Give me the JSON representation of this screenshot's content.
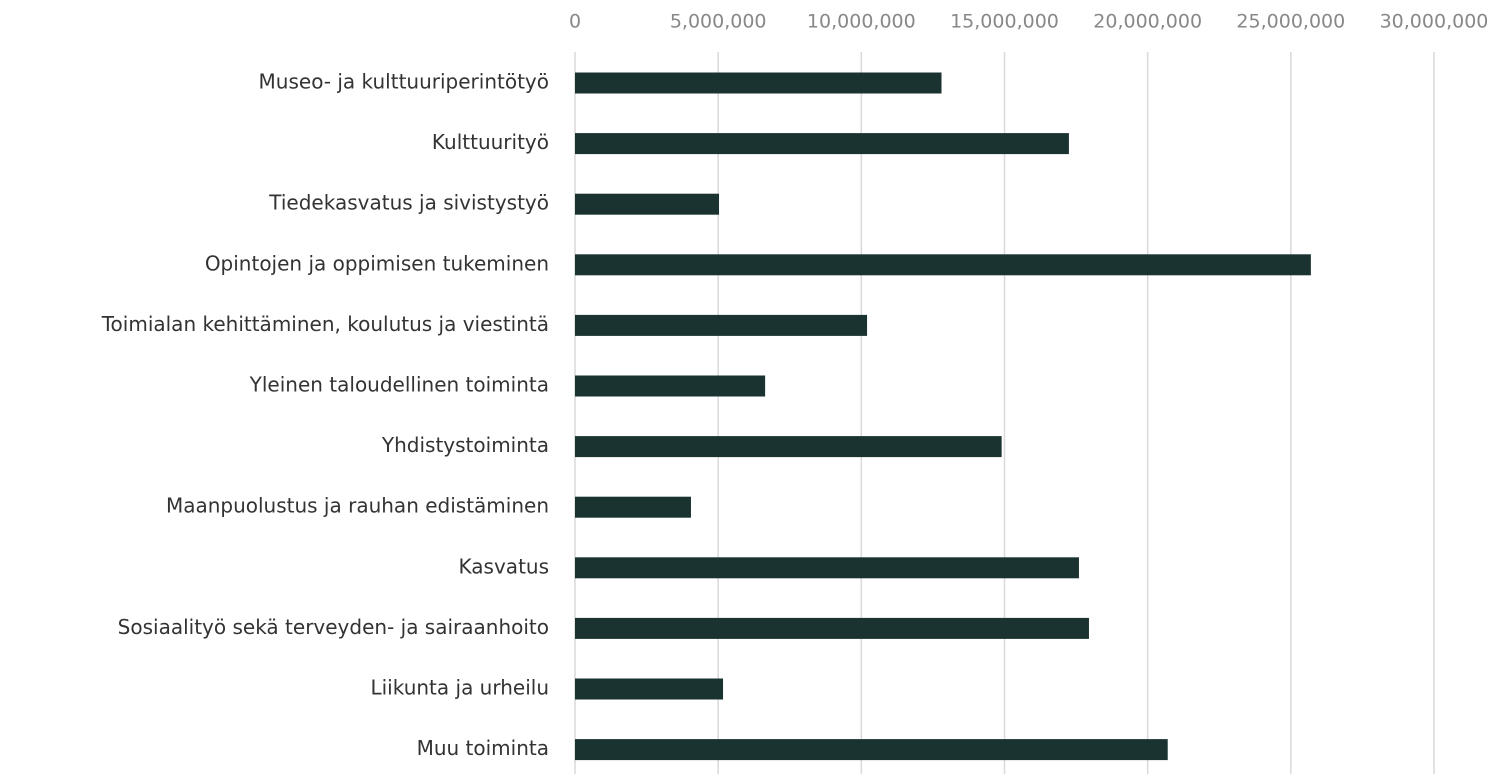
{
  "chart_data": {
    "type": "barh",
    "categories": [
      "Museo- ja kulttuuriperintötyö",
      "Kulttuurityö",
      "Tiedekasvatus ja sivistystyö",
      "Opintojen ja oppimisen tukeminen",
      "Toimialan kehittäminen, koulutus ja viestintä",
      "Yleinen taloudellinen toiminta",
      "Yhdistystoiminta",
      "Maanpuolustus ja rauhan edistäminen",
      "Kasvatus",
      "Sosiaalityö sekä terveyden- ja sairaanhoito",
      "Liikunta ja urheilu",
      "Muu toiminta"
    ],
    "values": [
      12800000,
      17250000,
      5030000,
      25700000,
      10200000,
      6640000,
      14900000,
      4050000,
      17600000,
      17950000,
      5170000,
      20700000
    ],
    "color": "#1b3330",
    "xlim": [
      0,
      30000000
    ],
    "xticks": [
      0,
      {
        "value": 5000000,
        "label": "5,000,000"
      },
      {
        "value": 10000000,
        "label": "10,000,000"
      },
      {
        "value": 15000000,
        "label": "15,000,000"
      },
      {
        "value": 20000000,
        "label": "20,000,000"
      },
      {
        "value": 25000000,
        "label": "25,000,000"
      },
      {
        "value": 30000000,
        "label": "30,000,000"
      }
    ],
    "grid": true
  }
}
